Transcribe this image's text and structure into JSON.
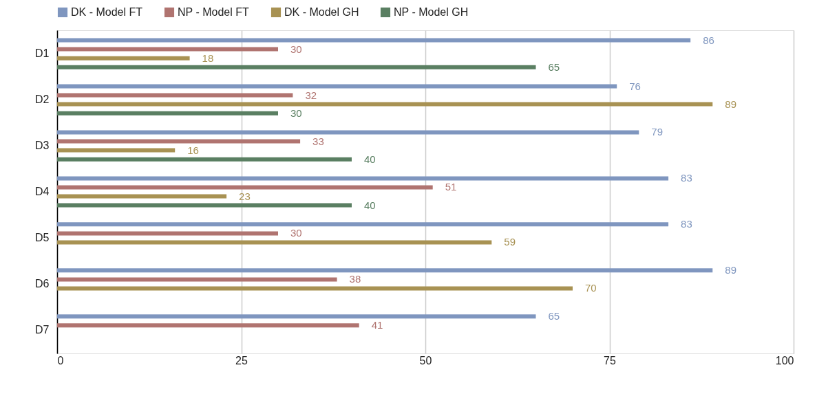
{
  "chart_data": {
    "type": "bar",
    "orientation": "horizontal",
    "categories": [
      "D1",
      "D2",
      "D3",
      "D4",
      "D5",
      "D6",
      "D7"
    ],
    "series": [
      {
        "name": "DK - Model FT",
        "color": "#7f96bf",
        "values": [
          86,
          76,
          79,
          83,
          83,
          89,
          65
        ]
      },
      {
        "name": "NP - Model FT",
        "color": "#b07470",
        "values": [
          30,
          32,
          33,
          51,
          30,
          38,
          41
        ]
      },
      {
        "name": "DK - Model GH",
        "color": "#a89253",
        "values": [
          18,
          89,
          16,
          23,
          59,
          70,
          null
        ]
      },
      {
        "name": "NP - Model GH",
        "color": "#5a7f62",
        "values": [
          65,
          30,
          40,
          40,
          null,
          null,
          null
        ]
      }
    ],
    "xlim": [
      0,
      100
    ],
    "xticks": [
      0,
      25,
      50,
      75,
      100
    ],
    "grid": "x",
    "legend": "top",
    "data_labels": true
  }
}
